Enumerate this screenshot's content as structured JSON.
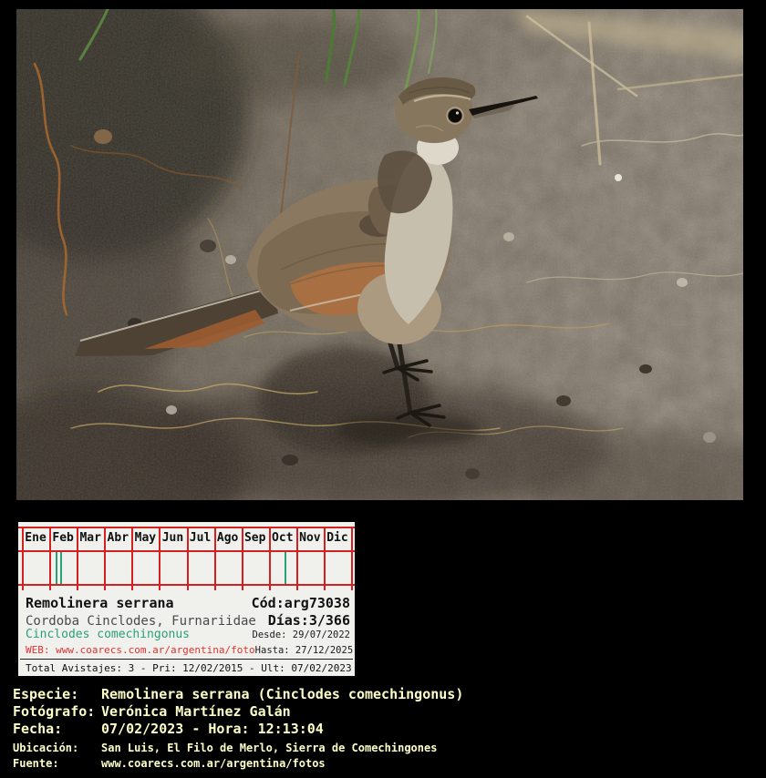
{
  "calendar": {
    "months": [
      "Ene",
      "Feb",
      "Mar",
      "Abr",
      "May",
      "Jun",
      "Jul",
      "Ago",
      "Sep",
      "Oct",
      "Nov",
      "Dic"
    ],
    "grid_color": "#d42020",
    "tick_color": "#2aa079",
    "ticks": [
      {
        "month_index": 1,
        "fraction": 0.24
      },
      {
        "month_index": 1,
        "fraction": 0.41
      },
      {
        "month_index": 9,
        "fraction": 0.57
      }
    ],
    "species_common": "Remolinera serrana",
    "code": "Cód:arg73038",
    "region_family": "Cordoba Cinclodes, Furnariidae",
    "days": "Días:3/366",
    "species_scientific": "Cinclodes comechingonus",
    "web": "WEB: www.coarecs.com.ar/argentina/foto",
    "desde": "Desde: 29/07/2022",
    "hasta": "Hasta: 27/12/2025",
    "total": "Total Avistajes: 3 - Pri: 12/02/2015 - Ult: 07/02/2023",
    "colors": {
      "panel_bg": "#f0f0ed",
      "scientific_green": "#2aa079",
      "web_red": "#e03131",
      "family_gray": "#4a4a4a"
    }
  },
  "details": {
    "text_color": "#ffffc8",
    "rows": [
      {
        "label": "Especie:",
        "value": "Remolinera serrana (Cinclodes comechingonus)"
      },
      {
        "label": "Fotógrafo:",
        "value": "Verónica Martínez Galán"
      },
      {
        "label": "Fecha:",
        "value": "07/02/2023 - Hora: 12:13:04"
      },
      {
        "label": "Ubicación:",
        "value": "San Luis, El Filo de Merlo, Sierra de Comechingones"
      },
      {
        "label": "Fuente:",
        "value": "www.coarecs.com.ar/argentina/fotos"
      }
    ]
  }
}
